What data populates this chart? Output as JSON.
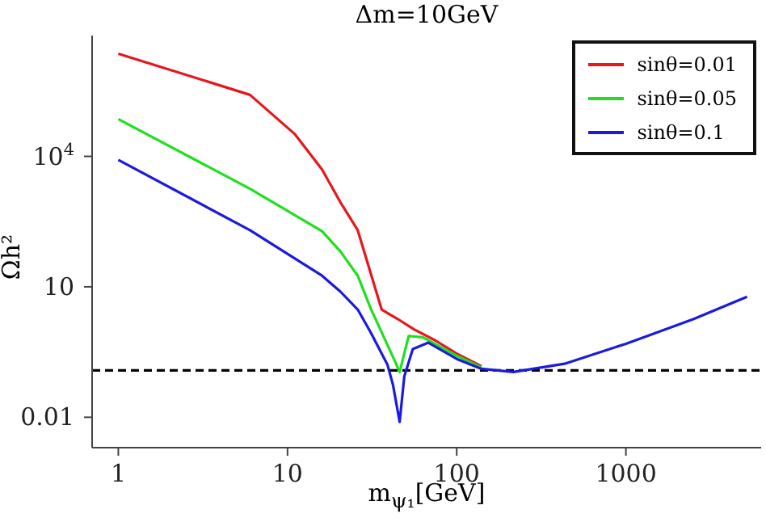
{
  "chart_data": {
    "type": "line",
    "title": "Δm=10GeV",
    "xlabel": "m$_{ψ₁}$[GeV]",
    "ylabel": "Ωh²",
    "log": "xy",
    "xlim": [
      0.7,
      6300
    ],
    "ylim": [
      0.002,
      6000000
    ],
    "xticks": [
      1,
      10,
      100,
      1000
    ],
    "yticks": [
      0.01,
      10,
      {
        "value": 10000,
        "label": "10$^{4}$"
      }
    ],
    "grid": false,
    "legend": "top right",
    "marker": "none",
    "line_style": "solid",
    "ref_lines": [
      {
        "axis": "y",
        "value": 0.12,
        "color": "#000000",
        "line_style": "dashed"
      }
    ],
    "series": [
      {
        "name": "sinθ=0.01",
        "color": "#e8161b",
        "x": [
          1,
          6,
          11,
          16,
          20.5,
          26,
          36,
          45,
          56,
          75,
          100,
          140
        ],
        "values": [
          2300000,
          260000,
          33000,
          5000,
          890,
          200,
          3.0,
          1.8,
          1.05,
          0.58,
          0.29,
          0.15
        ]
      },
      {
        "name": "sinθ=0.05",
        "color": "#1fe01f",
        "x": [
          1,
          6,
          16,
          20.5,
          26,
          31,
          43,
          46,
          52,
          63,
          100,
          140
        ],
        "values": [
          72000,
          1800,
          190,
          66,
          18,
          3.2,
          0.2,
          0.11,
          0.74,
          0.69,
          0.26,
          0.14
        ]
      },
      {
        "name": "sinθ=0.1",
        "color": "#1a1ae0",
        "x": [
          1,
          6,
          16,
          20.5,
          26,
          31,
          39,
          42,
          46,
          49,
          55,
          68,
          100,
          140,
          216,
          434,
          1000,
          2500,
          5200
        ],
        "values": [
          8300,
          200,
          18,
          7.8,
          3.0,
          0.9,
          0.16,
          0.056,
          0.0078,
          0.087,
          0.37,
          0.52,
          0.22,
          0.13,
          0.11,
          0.17,
          0.49,
          1.8,
          5.9
        ]
      }
    ]
  }
}
